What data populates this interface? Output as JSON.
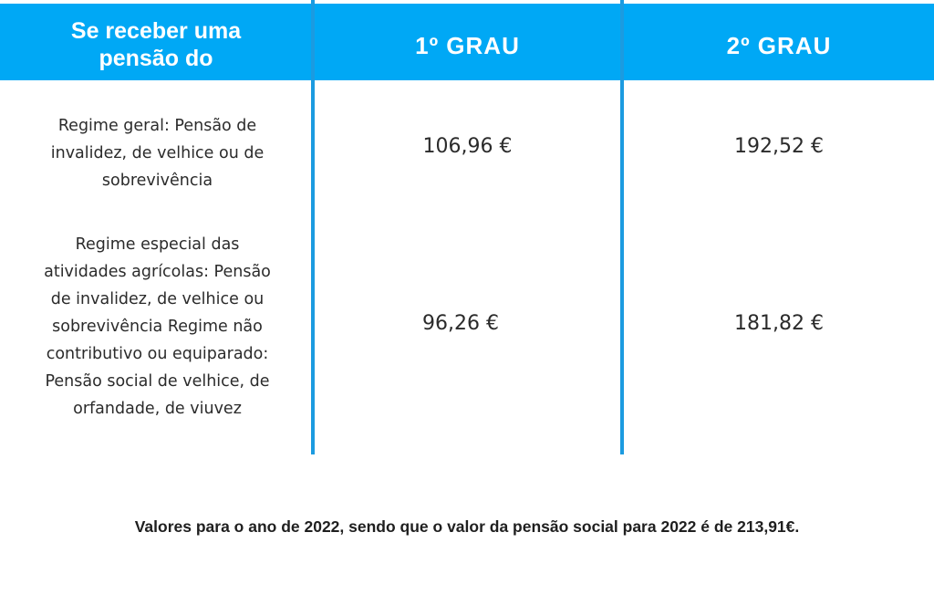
{
  "table": {
    "headers": [
      "Se receber uma pensão do",
      "1º GRAU",
      "2º GRAU"
    ],
    "rows": [
      {
        "label": "Regime geral: Pensão de invalidez, de velhice ou de sobrevivência",
        "grau1": "106,96 €",
        "grau2": "192,52 €"
      },
      {
        "label": "Regime especial das atividades agrícolas: Pensão de invalidez, de velhice ou sobrevivência Regime não contributivo ou equiparado: Pensão social de velhice, de orfandade, de viuvez",
        "grau1": "96,26 €",
        "grau2": "181,82 €"
      }
    ]
  },
  "footnote": "Valores para o ano de 2022, sendo que o valor da pensão social para 2022 é de 213,91€.",
  "colors": {
    "header_background": "#00a8f5",
    "divider": "#1c9be0",
    "header_text": "#ffffff",
    "body_text": "#2b2b2b"
  }
}
